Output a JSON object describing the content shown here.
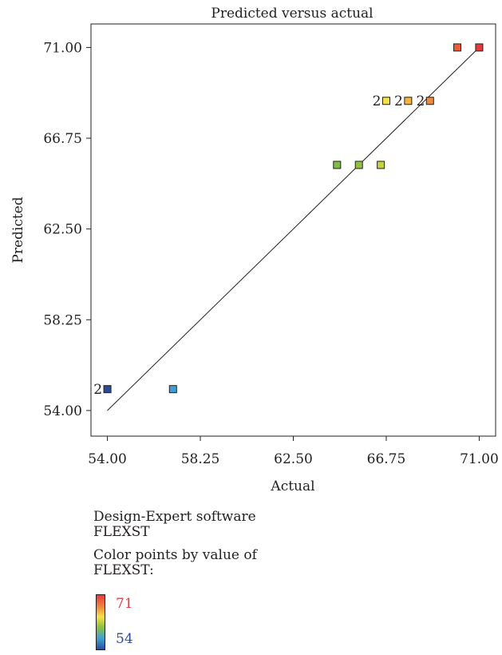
{
  "chart_data": {
    "type": "scatter",
    "title": "Predicted versus actual",
    "xlabel": "Actual",
    "ylabel": "Predicted",
    "xlim": [
      53.25,
      71.75
    ],
    "ylim": [
      52.8,
      72.1
    ],
    "x_ticks": [
      "54.00",
      "58.25",
      "62.50",
      "66.75",
      "71.00"
    ],
    "y_ticks": [
      "54.00",
      "58.25",
      "62.50",
      "66.75",
      "71.00"
    ],
    "reference_line": {
      "from": [
        54.0,
        54.0
      ],
      "to": [
        71.0,
        71.0
      ]
    },
    "points": [
      {
        "x": 54.0,
        "y": 55.0,
        "color": "#2b4a99",
        "label": "2"
      },
      {
        "x": 57.0,
        "y": 55.0,
        "color": "#3fa0d6",
        "label": ""
      },
      {
        "x": 64.5,
        "y": 65.5,
        "color": "#7fbf3f",
        "label": ""
      },
      {
        "x": 65.5,
        "y": 65.5,
        "color": "#92c23c",
        "label": ""
      },
      {
        "x": 66.5,
        "y": 65.5,
        "color": "#c6d23a",
        "label": ""
      },
      {
        "x": 66.75,
        "y": 68.5,
        "color": "#f5e14a",
        "label": "2"
      },
      {
        "x": 67.75,
        "y": 68.5,
        "color": "#f5b43c",
        "label": "2"
      },
      {
        "x": 68.75,
        "y": 68.5,
        "color": "#f08a3a",
        "label": "2"
      },
      {
        "x": 70.0,
        "y": 71.0,
        "color": "#ec5b3a",
        "label": ""
      },
      {
        "x": 71.0,
        "y": 71.0,
        "color": "#e8383a",
        "label": ""
      }
    ],
    "grid": false,
    "legend_placement": "bottom-left"
  },
  "legend": {
    "software": "Design-Expert software",
    "response": "FLEXST",
    "color_by_line1": "Color points by value of",
    "color_by_line2": "FLEXST:",
    "max_label": "71",
    "min_label": "54",
    "max_color": "#e8383a",
    "min_color": "#2b4a99"
  }
}
